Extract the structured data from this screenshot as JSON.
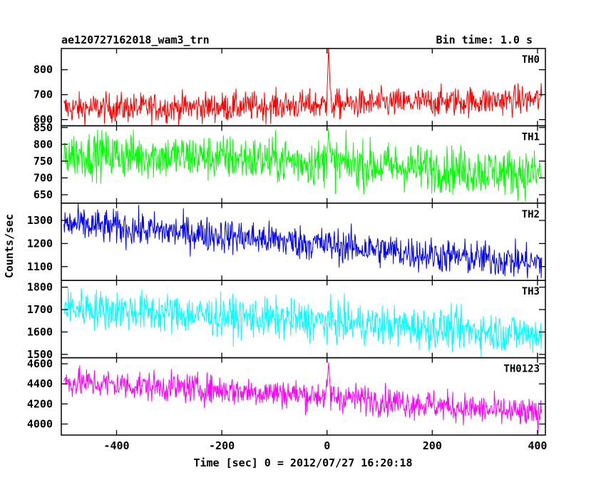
{
  "header": {
    "left": "ae120727162018_wam3_trn",
    "right": "Bin time: 1.0 s"
  },
  "chart_data": {
    "type": "line",
    "xlabel": "Time [sec] 0 = 2012/07/27 16:20:18",
    "ylabel": "Counts/sec",
    "xlim": [
      -505,
      415
    ],
    "xticks": [
      -400,
      -200,
      0,
      200,
      400
    ],
    "x_range": [
      -500,
      408
    ],
    "bin_time_s": 1.0,
    "grid": false,
    "panels": [
      {
        "name": "TH0",
        "color": "#ff0000",
        "ylim": [
          575,
          885
        ],
        "yticks": [
          600,
          700,
          800
        ],
        "trend": [
          [
            -500,
            645
          ],
          [
            -200,
            650
          ],
          [
            0,
            660
          ],
          [
            200,
            670
          ],
          [
            408,
            680
          ]
        ],
        "noise": 30,
        "peak": {
          "x": 3,
          "y": 885
        }
      },
      {
        "name": "TH1",
        "color": "#00ff00",
        "ylim": [
          625,
          855
        ],
        "yticks": [
          650,
          700,
          750,
          800,
          850
        ],
        "trend": [
          [
            -500,
            772
          ],
          [
            -200,
            760
          ],
          [
            0,
            745
          ],
          [
            200,
            728
          ],
          [
            408,
            712
          ]
        ],
        "noise": 35,
        "peak": {
          "x": 3,
          "y": 845
        }
      },
      {
        "name": "TH2",
        "color": "#0000ff",
        "ylim": [
          1040,
          1375
        ],
        "yticks": [
          1100,
          1200,
          1300
        ],
        "trend": [
          [
            -500,
            1285
          ],
          [
            -200,
            1235
          ],
          [
            0,
            1195
          ],
          [
            200,
            1150
          ],
          [
            408,
            1115
          ]
        ],
        "noise": 38
      },
      {
        "name": "TH3",
        "color": "#00ffff",
        "ylim": [
          1485,
          1830
        ],
        "yticks": [
          1500,
          1600,
          1700,
          1800
        ],
        "trend": [
          [
            -500,
            1710
          ],
          [
            -200,
            1670
          ],
          [
            0,
            1645
          ],
          [
            200,
            1615
          ],
          [
            408,
            1590
          ]
        ],
        "noise": 45
      },
      {
        "name": "TH0123",
        "color": "#ff00ff",
        "ylim": [
          3890,
          4660
        ],
        "yticks": [
          4000,
          4200,
          4400,
          4600
        ],
        "trend": [
          [
            -500,
            4420
          ],
          [
            -200,
            4340
          ],
          [
            0,
            4280
          ],
          [
            200,
            4190
          ],
          [
            408,
            4090
          ]
        ],
        "noise": 75,
        "peak": {
          "x": 3,
          "y": 4600
        }
      }
    ]
  }
}
